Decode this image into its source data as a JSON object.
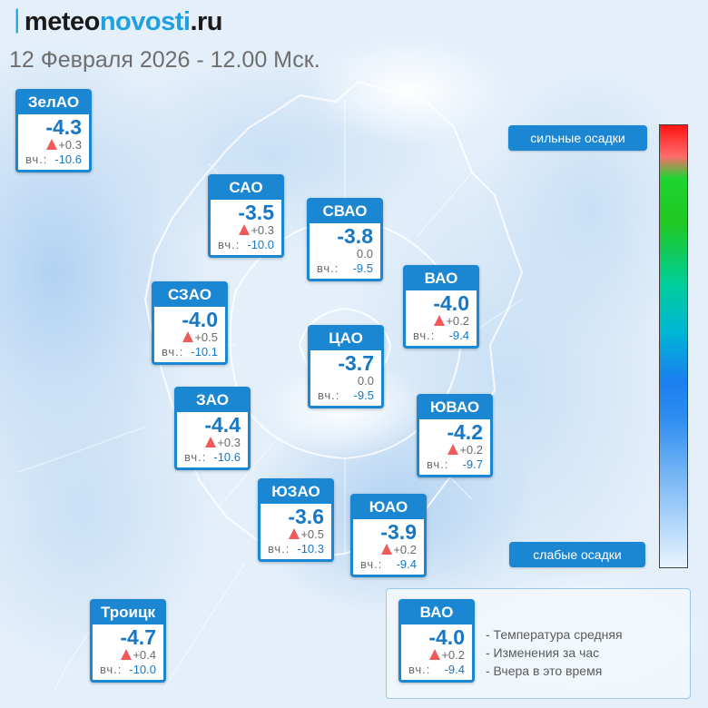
{
  "header": {
    "brand_mark": "ᛁ",
    "brand_part1": "meteo",
    "brand_part2": "novosti",
    "brand_part3": ".ru",
    "subtitle": "12 Февраля 2026 - 12.00 Мск."
  },
  "districts": [
    {
      "id": "zelao",
      "name": "ЗелАО",
      "temp": "-4.3",
      "delta": "+0.3",
      "trend": "up",
      "yesterday_label": "вч.:",
      "yesterday": "-10.6"
    },
    {
      "id": "sao",
      "name": "САО",
      "temp": "-3.5",
      "delta": "+0.3",
      "trend": "up",
      "yesterday_label": "вч.:",
      "yesterday": "-10.0"
    },
    {
      "id": "svao",
      "name": "СВАО",
      "temp": "-3.8",
      "delta": "0.0",
      "trend": "none",
      "yesterday_label": "вч.:",
      "yesterday": "-9.5"
    },
    {
      "id": "vao",
      "name": "ВАО",
      "temp": "-4.0",
      "delta": "+0.2",
      "trend": "up",
      "yesterday_label": "вч.:",
      "yesterday": "-9.4"
    },
    {
      "id": "szao",
      "name": "СЗАО",
      "temp": "-4.0",
      "delta": "+0.5",
      "trend": "up",
      "yesterday_label": "вч.:",
      "yesterday": "-10.1"
    },
    {
      "id": "cao",
      "name": "ЦАО",
      "temp": "-3.7",
      "delta": "0.0",
      "trend": "none",
      "yesterday_label": "вч.:",
      "yesterday": "-9.5"
    },
    {
      "id": "zao",
      "name": "ЗАО",
      "temp": "-4.4",
      "delta": "+0.3",
      "trend": "up",
      "yesterday_label": "вч.:",
      "yesterday": "-10.6"
    },
    {
      "id": "yuvao",
      "name": "ЮВАО",
      "temp": "-4.2",
      "delta": "+0.2",
      "trend": "up",
      "yesterday_label": "вч.:",
      "yesterday": "-9.7"
    },
    {
      "id": "yuzao",
      "name": "ЮЗАО",
      "temp": "-3.6",
      "delta": "+0.5",
      "trend": "up",
      "yesterday_label": "вч.:",
      "yesterday": "-10.3"
    },
    {
      "id": "yuao",
      "name": "ЮАО",
      "temp": "-3.9",
      "delta": "+0.2",
      "trend": "up",
      "yesterday_label": "вч.:",
      "yesterday": "-9.4"
    },
    {
      "id": "troitsk",
      "name": "Троицк",
      "temp": "-4.7",
      "delta": "+0.4",
      "trend": "up",
      "yesterday_label": "вч.:",
      "yesterday": "-10.0"
    }
  ],
  "scale": {
    "top_label": "сильные осадки",
    "bottom_label": "слабые осадки",
    "gradient_colors": [
      "#ff1414",
      "#ff6a6a",
      "#1ed431",
      "#00ce9a",
      "#00b5d6",
      "#1a7ff0",
      "#7ab8f5",
      "#e8f3fd"
    ]
  },
  "legend": {
    "sample": {
      "name": "ВАО",
      "temp": "-4.0",
      "delta": "+0.2",
      "trend": "up",
      "yesterday_label": "вч.:",
      "yesterday": "-9.4"
    },
    "lines": [
      "- Температура средняя",
      "- Изменения за час",
      "- Вчера в это время"
    ]
  },
  "colors": {
    "accent": "#1b87d2",
    "temp_text": "#1677c4",
    "trend_up": "#ef5a5a",
    "background": "#eef4fb"
  }
}
